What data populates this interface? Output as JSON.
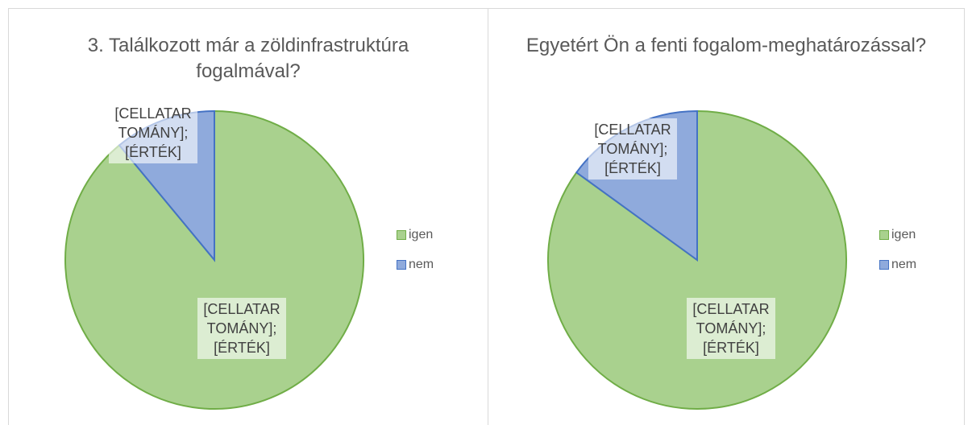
{
  "chart_data": [
    {
      "type": "pie",
      "title": "3. Találkozott már a zöldinfrastruktúra fogalmával?",
      "categories": [
        "igen",
        "nem"
      ],
      "values": [
        89,
        11
      ],
      "colors": [
        "#a9d18e",
        "#8faadc"
      ],
      "edge_colors": [
        "#70ad47",
        "#4472c4"
      ],
      "data_labels": [
        "[CELLATARTOMÁNY]; [ÉRTÉK]",
        "[CELLATARTOMÁNY]; [ÉRTÉK]"
      ],
      "legend": "right"
    },
    {
      "type": "pie",
      "title": "Egyetért Ön a fenti fogalom-meghatározással?",
      "categories": [
        "igen",
        "nem"
      ],
      "values": [
        85,
        15
      ],
      "colors": [
        "#a9d18e",
        "#8faadc"
      ],
      "edge_colors": [
        "#70ad47",
        "#4472c4"
      ],
      "data_labels": [
        "[CELLATARTOMÁNY]; [ÉRTÉK]",
        "[CELLATARTOMÁNY]; [ÉRTÉK]"
      ],
      "legend": "right"
    }
  ]
}
